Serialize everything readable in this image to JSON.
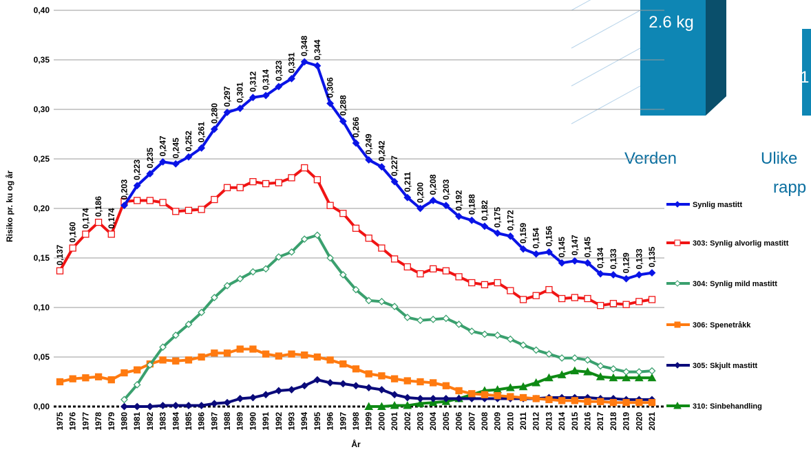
{
  "chart_data": {
    "type": "line",
    "y_label": "Risiko pr. ku og år",
    "x_label": "År",
    "categories": [
      "1975",
      "1976",
      "1977",
      "1978",
      "1979",
      "1980",
      "1981",
      "1982",
      "1983",
      "1984",
      "1985",
      "1986",
      "1987",
      "1988",
      "1989",
      "1990",
      "1991",
      "1992",
      "1993",
      "1994",
      "1995",
      "1996",
      "1997",
      "1998",
      "1999",
      "2000",
      "2001",
      "2002",
      "2003",
      "2004",
      "2005",
      "2006",
      "2007",
      "2008",
      "2009",
      "2010",
      "2011",
      "2012",
      "2013",
      "2014",
      "2015",
      "2016",
      "2017",
      "2018",
      "2019",
      "2020",
      "2021"
    ],
    "ylim": [
      0,
      0.4
    ],
    "yticks": [
      {
        "value": 0,
        "label": "0,00"
      },
      {
        "value": 0.05,
        "label": "0,05"
      },
      {
        "value": 0.1,
        "label": "0,10"
      },
      {
        "value": 0.15,
        "label": "0,15"
      },
      {
        "value": 0.2,
        "label": "0,20"
      },
      {
        "value": 0.25,
        "label": "0,25"
      },
      {
        "value": 0.3,
        "label": "0,30"
      },
      {
        "value": 0.35,
        "label": "0,35"
      },
      {
        "value": 0.4,
        "label": "0,40"
      }
    ],
    "grid": true,
    "series": [
      {
        "name": "Synlig mastitt",
        "color": "#0a14e6",
        "marker": "diamond",
        "values": [
          null,
          null,
          null,
          null,
          null,
          0.203,
          0.223,
          0.235,
          0.247,
          0.245,
          0.252,
          0.261,
          0.28,
          0.297,
          0.301,
          0.312,
          0.314,
          0.323,
          0.331,
          0.348,
          0.344,
          0.306,
          0.288,
          0.266,
          0.249,
          0.242,
          0.227,
          0.211,
          0.2,
          0.208,
          0.203,
          0.192,
          0.188,
          0.182,
          0.175,
          0.172,
          0.159,
          0.154,
          0.156,
          0.145,
          0.147,
          0.145,
          0.134,
          0.133,
          0.129,
          0.133,
          0.135
        ],
        "value_labels": [
          null,
          null,
          null,
          null,
          null,
          "0,203",
          "0,223",
          "0,235",
          "0,247",
          "0,245",
          "0,252",
          "0,261",
          "0,280",
          "0,297",
          "0,301",
          "0,312",
          "0,314",
          "0,323",
          "0,331",
          "0,348",
          "0,344",
          "0,306",
          "0,288",
          "0,266",
          "0,249",
          "0,242",
          "0,227",
          "0,211",
          "0,200",
          "0,208",
          "0,203",
          "0,192",
          "0,188",
          "0,182",
          "0,175",
          "0,172",
          "0,159",
          "0,154",
          "0,156",
          "0,145",
          "0,147",
          "0,145",
          "0,134",
          "0,133",
          "0,129",
          "0,133",
          "0,135"
        ]
      },
      {
        "name": "303: Synlig alvorlig mastitt",
        "color": "#f01414",
        "marker": "square-open",
        "values": [
          0.137,
          0.16,
          0.174,
          0.186,
          0.174,
          0.207,
          0.208,
          0.208,
          0.206,
          0.197,
          0.198,
          0.199,
          0.209,
          0.221,
          0.221,
          0.227,
          0.225,
          0.226,
          0.231,
          0.241,
          0.229,
          0.203,
          0.195,
          0.18,
          0.17,
          0.16,
          0.149,
          0.141,
          0.134,
          0.139,
          0.137,
          0.131,
          0.125,
          0.123,
          0.125,
          0.117,
          0.108,
          0.112,
          0.118,
          0.109,
          0.11,
          0.109,
          0.102,
          0.104,
          0.103,
          0.106,
          0.108
        ],
        "value_labels": [
          "0,137",
          "0,160",
          "0,174",
          "0,186",
          "0,174",
          null,
          null,
          null,
          null,
          null,
          null,
          null,
          null,
          null,
          null,
          null,
          null,
          null,
          null,
          null,
          null,
          null,
          null,
          null,
          null,
          null,
          null,
          null,
          null,
          null,
          null,
          null,
          null,
          null,
          null,
          null,
          null,
          null,
          null,
          null,
          null,
          null,
          null,
          null,
          null,
          null,
          null
        ]
      },
      {
        "name": "304: Synlig mild mastitt",
        "color": "#3aa06e",
        "marker": "diamond-open",
        "values": [
          null,
          null,
          null,
          null,
          null,
          0.007,
          0.022,
          0.042,
          0.06,
          0.072,
          0.083,
          0.095,
          0.11,
          0.122,
          0.129,
          0.136,
          0.139,
          0.151,
          0.156,
          0.169,
          0.173,
          0.15,
          0.133,
          0.118,
          0.107,
          0.106,
          0.101,
          0.09,
          0.087,
          0.088,
          0.089,
          0.083,
          0.076,
          0.073,
          0.072,
          0.068,
          0.062,
          0.057,
          0.053,
          0.049,
          0.049,
          0.047,
          0.041,
          0.038,
          0.035,
          0.035,
          0.036
        ]
      },
      {
        "name": "306: Spenetråkk",
        "color": "#ff7a10",
        "marker": "square",
        "values": [
          0.025,
          0.028,
          0.029,
          0.03,
          0.027,
          0.034,
          0.037,
          0.043,
          0.047,
          0.046,
          0.047,
          0.05,
          0.054,
          0.054,
          0.058,
          0.058,
          0.053,
          0.051,
          0.053,
          0.052,
          0.05,
          0.047,
          0.043,
          0.038,
          0.033,
          0.031,
          0.028,
          0.026,
          0.025,
          0.024,
          0.021,
          0.016,
          0.013,
          0.012,
          0.011,
          0.01,
          0.009,
          0.008,
          0.007,
          0.006,
          0.006,
          0.005,
          0.005,
          0.004,
          0.004,
          0.004,
          0.004
        ]
      },
      {
        "name": "305: Skjult mastitt",
        "color": "#0a0a7a",
        "marker": "diamond",
        "values": [
          null,
          null,
          null,
          null,
          null,
          0.0,
          0.0,
          0.0,
          0.001,
          0.001,
          0.001,
          0.001,
          0.003,
          0.004,
          0.008,
          0.009,
          0.012,
          0.016,
          0.017,
          0.021,
          0.027,
          0.024,
          0.023,
          0.021,
          0.019,
          0.017,
          0.012,
          0.009,
          0.008,
          0.008,
          0.008,
          0.008,
          0.008,
          0.008,
          0.008,
          0.008,
          0.008,
          0.008,
          0.009,
          0.009,
          0.009,
          0.009,
          0.008,
          0.008,
          0.007,
          0.007,
          0.007
        ]
      },
      {
        "name": "310: Sinbehandling",
        "color": "#0e8a14",
        "marker": "triangle",
        "values": [
          null,
          null,
          null,
          null,
          null,
          null,
          null,
          null,
          null,
          null,
          null,
          null,
          null,
          null,
          null,
          null,
          null,
          null,
          null,
          null,
          null,
          null,
          null,
          null,
          0.0,
          0.0,
          0.001,
          0.001,
          0.003,
          0.004,
          0.005,
          0.008,
          0.012,
          0.016,
          0.017,
          0.019,
          0.02,
          0.024,
          0.029,
          0.032,
          0.036,
          0.035,
          0.03,
          0.029,
          0.029,
          0.029,
          0.029
        ]
      }
    ]
  },
  "overlay": {
    "box_label": "2.6 kg",
    "box2_label": "1",
    "label_left": "Verden",
    "label_right": "Ulike",
    "label_right2": "rapp"
  }
}
